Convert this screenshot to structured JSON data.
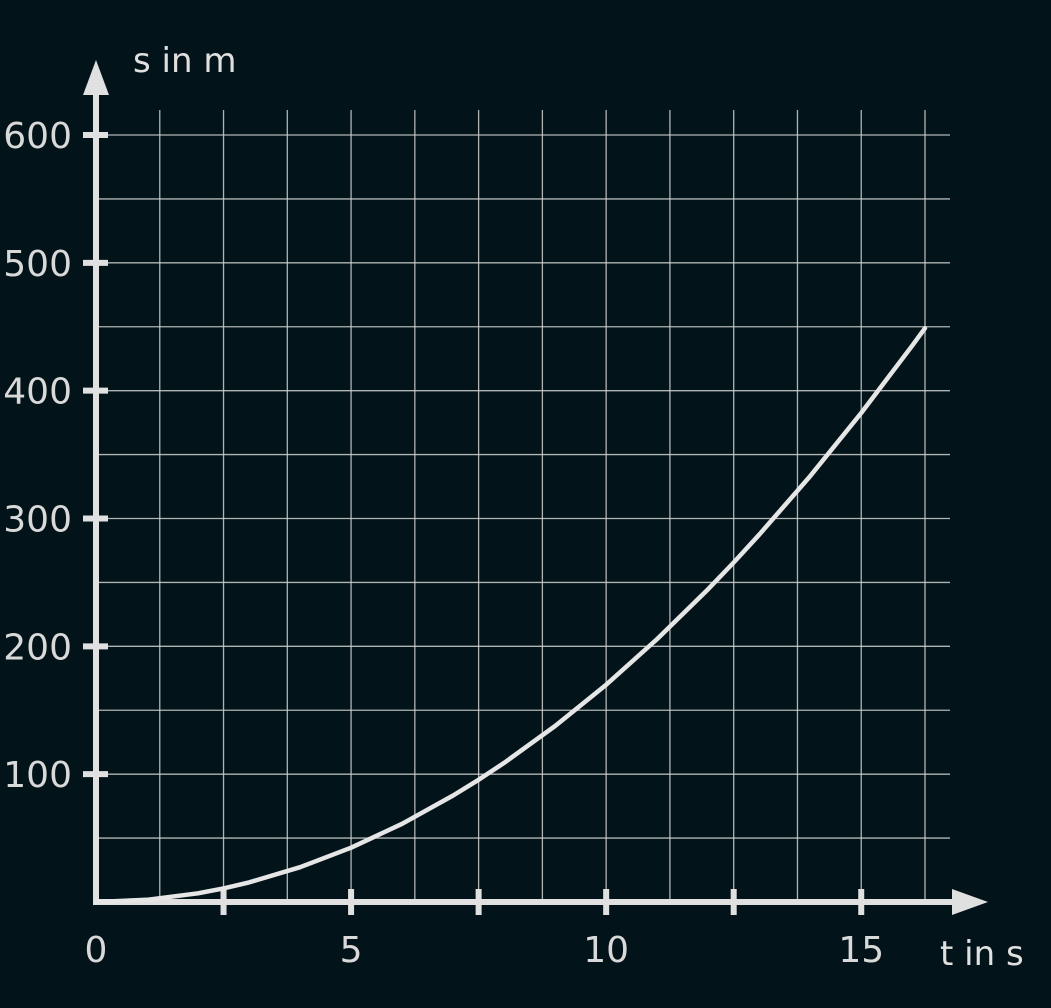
{
  "chart_data": {
    "type": "line",
    "title": "",
    "xlabel": "t in s",
    "ylabel": "s in m",
    "xlim": [
      0,
      16.25
    ],
    "ylim": [
      0,
      600
    ],
    "x_ticks": [
      0,
      5,
      10,
      15
    ],
    "x_minor_ticks": [
      2.5,
      5,
      7.5,
      10,
      12.5,
      15
    ],
    "x_tick_labels": [
      "0",
      "5",
      "10",
      "15"
    ],
    "y_ticks": [
      100,
      200,
      300,
      400,
      500,
      600
    ],
    "y_tick_labels": [
      "100",
      "200",
      "300",
      "400",
      "500",
      "600"
    ],
    "grid": true,
    "grid_x_step": 1.25,
    "grid_y_step": 50,
    "series": [
      {
        "name": "",
        "x": [
          0,
          1,
          2,
          2.5,
          3,
          4,
          5,
          6,
          7,
          7.5,
          8,
          9,
          10,
          11,
          12,
          12.5,
          13,
          14,
          15,
          16,
          16.25
        ],
        "y": [
          0,
          1.7,
          6.8,
          10.6,
          15.3,
          27.2,
          42.5,
          61.2,
          83.3,
          95.6,
          108.8,
          137.7,
          170,
          205.7,
          244.8,
          265.6,
          287.3,
          333.2,
          382.5,
          435.2,
          448.9
        ]
      }
    ],
    "colors": {
      "background": "#02141a",
      "line": "#e6e6e6",
      "axis": "#e0e0e0",
      "grid": "#d0d0d0"
    }
  }
}
